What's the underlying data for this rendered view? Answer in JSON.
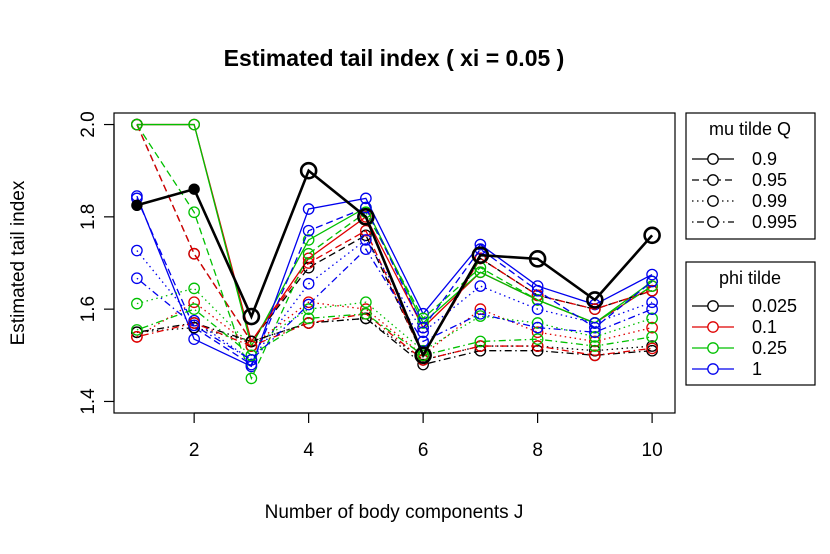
{
  "chart_data": {
    "type": "line",
    "title": "Estimated tail index ( xi = 0.05 )",
    "xlabel": "Number of body components J",
    "ylabel": "Estimated tail index",
    "xlim": [
      0.6,
      10.4
    ],
    "ylim": [
      1.375,
      2.025
    ],
    "xticks": [
      2,
      4,
      6,
      8,
      10
    ],
    "xtick_labels": [
      "2",
      "4",
      "6",
      "8",
      "10"
    ],
    "yticks": [
      1.4,
      1.6,
      1.8,
      2.0
    ],
    "ytick_labels": [
      "1.4",
      "1.6",
      "1.8",
      "2.0"
    ],
    "x": [
      1,
      2,
      3,
      4,
      5,
      6,
      7,
      8,
      9,
      10
    ],
    "legend_mu": {
      "title": "mu tilde Q",
      "entries": [
        {
          "label": "0.9",
          "line": "solid"
        },
        {
          "label": "0.95",
          "line": "dashed"
        },
        {
          "label": "0.99",
          "line": "dotted"
        },
        {
          "label": "0.995",
          "line": "dotdash"
        }
      ]
    },
    "legend_phi": {
      "title": "phi tilde",
      "entries": [
        {
          "label": "0.025",
          "color": "#000000"
        },
        {
          "label": "0.1",
          "color": "#df0000"
        },
        {
          "label": "0.25",
          "color": "#00c000"
        },
        {
          "label": "1",
          "color": "#0000ee"
        }
      ]
    },
    "series": [
      {
        "name": "0.9 / 0.025",
        "color": "#000000",
        "line": "solid",
        "bold": true,
        "values": [
          1.825,
          1.86,
          1.584,
          1.9,
          1.8,
          1.5,
          1.717,
          1.709,
          1.62,
          1.76
        ],
        "filled": [
          1,
          2
        ]
      },
      {
        "name": "0.9 / 0.1",
        "color": "#df0000",
        "line": "solid",
        "values": [
          2.0,
          2.0,
          1.53,
          1.71,
          1.8,
          1.56,
          1.68,
          1.62,
          1.57,
          1.65
        ]
      },
      {
        "name": "0.9 / 0.25",
        "color": "#00c000",
        "line": "solid",
        "values": [
          2.0,
          2.0,
          1.52,
          1.75,
          1.82,
          1.57,
          1.68,
          1.62,
          1.57,
          1.66
        ]
      },
      {
        "name": "0.9 / 1",
        "color": "#0000ee",
        "line": "solid",
        "values": [
          1.845,
          1.535,
          1.476,
          1.817,
          1.84,
          1.59,
          1.74,
          1.65,
          1.61,
          1.675
        ]
      },
      {
        "name": "0.95 / 0.025",
        "color": "#000000",
        "line": "dashed",
        "values": [
          2.0,
          1.72,
          1.53,
          1.69,
          1.76,
          1.5,
          1.71,
          1.63,
          1.6,
          1.64
        ]
      },
      {
        "name": "0.95 / 0.1",
        "color": "#df0000",
        "line": "dashed",
        "values": [
          2.0,
          1.72,
          1.53,
          1.7,
          1.77,
          1.5,
          1.71,
          1.63,
          1.6,
          1.64
        ]
      },
      {
        "name": "0.95 / 0.25",
        "color": "#00c000",
        "line": "dashed",
        "values": [
          2.0,
          1.81,
          1.45,
          1.72,
          1.81,
          1.58,
          1.69,
          1.62,
          1.57,
          1.65
        ]
      },
      {
        "name": "0.95 / 1",
        "color": "#0000ee",
        "line": "dashed",
        "values": [
          1.84,
          1.56,
          1.48,
          1.77,
          1.82,
          1.56,
          1.73,
          1.64,
          1.56,
          1.66
        ]
      },
      {
        "name": "0.99 / 0.025",
        "color": "#000000",
        "line": "dotted",
        "values": [
          1.55,
          1.56,
          1.53,
          1.57,
          1.58,
          1.49,
          1.52,
          1.52,
          1.51,
          1.52
        ]
      },
      {
        "name": "0.99 / 0.1",
        "color": "#df0000",
        "line": "dotted",
        "values": [
          1.54,
          1.615,
          1.52,
          1.615,
          1.6,
          1.5,
          1.6,
          1.55,
          1.53,
          1.56
        ]
      },
      {
        "name": "0.99 / 0.25",
        "color": "#00c000",
        "line": "dotted",
        "values": [
          1.612,
          1.645,
          1.52,
          1.6,
          1.615,
          1.51,
          1.585,
          1.57,
          1.54,
          1.58
        ]
      },
      {
        "name": "0.99 / 1",
        "color": "#0000ee",
        "line": "dotted",
        "values": [
          1.727,
          1.575,
          1.49,
          1.655,
          1.75,
          1.55,
          1.65,
          1.6,
          1.57,
          1.615
        ]
      },
      {
        "name": "0.995 / 0.025",
        "color": "#000000",
        "line": "dotdash",
        "values": [
          1.55,
          1.57,
          1.53,
          1.57,
          1.58,
          1.48,
          1.51,
          1.51,
          1.5,
          1.51
        ]
      },
      {
        "name": "0.995 / 0.1",
        "color": "#df0000",
        "line": "dotdash",
        "values": [
          1.54,
          1.57,
          1.52,
          1.57,
          1.59,
          1.49,
          1.52,
          1.52,
          1.5,
          1.515
        ]
      },
      {
        "name": "0.995 / 0.25",
        "color": "#00c000",
        "line": "dotdash",
        "values": [
          1.555,
          1.6,
          1.5,
          1.58,
          1.59,
          1.5,
          1.53,
          1.535,
          1.52,
          1.54
        ]
      },
      {
        "name": "0.995 / 1",
        "color": "#0000ee",
        "line": "dotdash",
        "values": [
          1.667,
          1.565,
          1.49,
          1.61,
          1.73,
          1.53,
          1.59,
          1.56,
          1.55,
          1.6
        ]
      }
    ]
  }
}
